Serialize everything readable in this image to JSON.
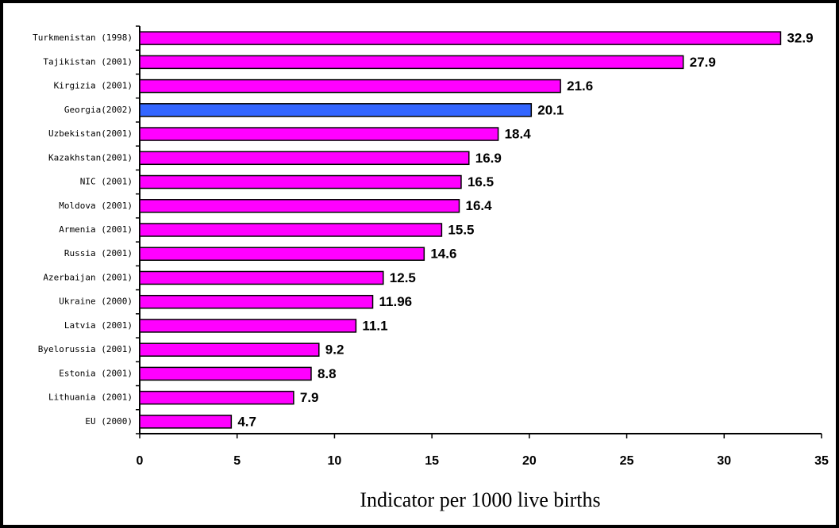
{
  "chart_data": {
    "type": "barh",
    "x_label": "Indicator per 1000 live births",
    "categories": [
      "Turkmenistan (1998)",
      "Tajikistan (2001)",
      "Kirgizia (2001)",
      "Georgia(2002)",
      "Uzbekistan(2001)",
      "Kazakhstan(2001)",
      "NIC (2001)",
      "Moldova (2001)",
      "Armenia (2001)",
      "Russia (2001)",
      "Azerbaijan (2001)",
      "Ukraine (2000)",
      "Latvia (2001)",
      "Byelorussia (2001)",
      "Estonia (2001)",
      "Lithuania (2001)",
      "EU (2000)"
    ],
    "values": [
      32.9,
      27.9,
      21.6,
      20.1,
      18.4,
      16.9,
      16.5,
      16.4,
      15.5,
      14.6,
      12.5,
      11.96,
      11.1,
      9.2,
      8.8,
      7.9,
      4.7
    ],
    "colors": [
      "#ff00ff",
      "#ff00ff",
      "#ff00ff",
      "#3366ff",
      "#ff00ff",
      "#ff00ff",
      "#ff00ff",
      "#ff00ff",
      "#ff00ff",
      "#ff00ff",
      "#ff00ff",
      "#ff00ff",
      "#ff00ff",
      "#ff00ff",
      "#ff00ff",
      "#ff00ff",
      "#ff00ff"
    ],
    "xlim": [
      0,
      35
    ],
    "xticks": [
      0,
      5,
      10,
      15,
      20,
      25,
      30,
      35
    ],
    "grid": false
  }
}
